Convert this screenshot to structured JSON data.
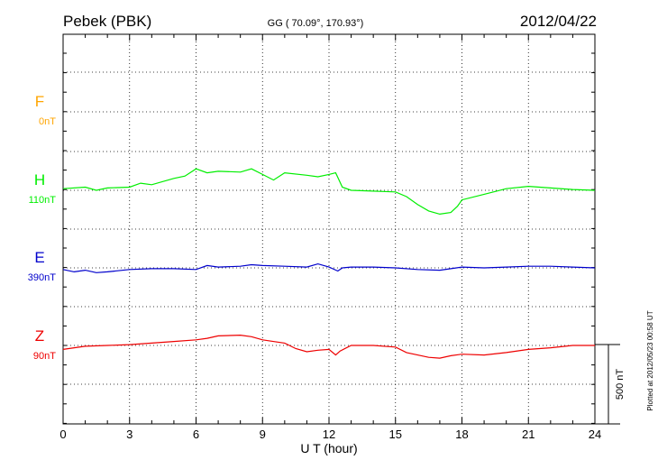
{
  "header": {
    "station": "Pebek (PBK)",
    "coords": "GG ( 70.09°, 170.93°)",
    "date": "2012/04/22"
  },
  "footer_note": "Plotted at 2012/05/23 00:58 UT",
  "scale_label": "500 nT",
  "colors": {
    "F": "#ffa500",
    "H": "#00ee00",
    "E": "#0000cc",
    "Z": "#ee0000",
    "axis": "#000000"
  },
  "chart_data": {
    "type": "line",
    "title": "",
    "xlabel": "U T (hour)",
    "ylabel": "",
    "xlim": [
      0,
      24
    ],
    "xticks": [
      0,
      3,
      6,
      9,
      12,
      15,
      18,
      21,
      24
    ],
    "scale_nT": 500,
    "grid": true,
    "series": [
      {
        "name": "F",
        "baseline": "0nT",
        "x": [],
        "y": []
      },
      {
        "name": "H",
        "baseline": "110nT",
        "x": [
          0,
          1,
          1.5,
          2,
          3,
          3.5,
          4,
          5,
          5.5,
          6,
          6.5,
          7,
          8,
          8.5,
          9,
          9.5,
          10,
          11,
          11.5,
          12,
          12.3,
          12.6,
          13,
          14,
          15,
          15.5,
          16,
          16.5,
          17,
          17.5,
          17.8,
          18,
          19,
          20,
          21,
          22,
          23,
          24
        ],
        "y": [
          10,
          20,
          0,
          15,
          20,
          45,
          35,
          75,
          90,
          135,
          110,
          120,
          115,
          135,
          100,
          65,
          110,
          95,
          85,
          100,
          110,
          20,
          0,
          -5,
          -10,
          -40,
          -90,
          -130,
          -150,
          -140,
          -100,
          -60,
          -25,
          10,
          25,
          15,
          5,
          0
        ]
      },
      {
        "name": "E",
        "baseline": "390nT",
        "x": [
          0,
          0.5,
          1,
          1.5,
          2,
          3,
          4,
          5,
          6,
          6.5,
          7,
          8,
          8.5,
          9,
          10,
          11,
          11.5,
          12,
          12.4,
          12.6,
          13,
          14,
          15,
          16,
          17,
          17.5,
          18,
          19,
          20,
          21,
          22,
          23,
          24
        ],
        "y": [
          -10,
          -25,
          -15,
          -30,
          -25,
          -10,
          -5,
          -5,
          -10,
          15,
          5,
          10,
          20,
          15,
          10,
          5,
          25,
          5,
          -20,
          0,
          5,
          5,
          0,
          -10,
          -15,
          -5,
          5,
          0,
          5,
          10,
          10,
          5,
          0
        ]
      },
      {
        "name": "Z",
        "baseline": "90nT",
        "x": [
          0,
          1,
          2,
          3,
          4,
          5,
          6,
          6.5,
          7,
          8,
          8.5,
          9,
          10,
          10.5,
          11,
          11.5,
          12,
          12.3,
          12.5,
          13,
          14,
          15,
          15.5,
          16,
          16.5,
          17,
          17.5,
          18,
          19,
          20,
          21,
          22,
          23,
          24
        ],
        "y": [
          -25,
          -5,
          0,
          5,
          15,
          25,
          35,
          45,
          60,
          65,
          55,
          35,
          15,
          -20,
          -40,
          -30,
          -25,
          -60,
          -35,
          0,
          0,
          -10,
          -45,
          -60,
          -75,
          -80,
          -65,
          -55,
          -60,
          -45,
          -25,
          -15,
          0,
          0
        ]
      }
    ]
  }
}
